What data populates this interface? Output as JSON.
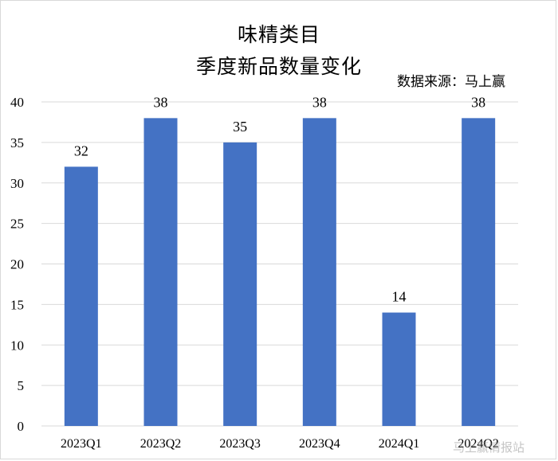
{
  "chart_data": {
    "type": "bar",
    "title": "味精类目",
    "subtitle": "季度新品数量变化",
    "source": "数据来源：马上赢",
    "categories": [
      "2023Q1",
      "2023Q2",
      "2023Q3",
      "2023Q4",
      "2024Q1",
      "2024Q2"
    ],
    "values": [
      32,
      38,
      35,
      38,
      14,
      38
    ],
    "ylim": [
      0,
      40
    ],
    "yticks": [
      0,
      5,
      10,
      15,
      20,
      25,
      30,
      35,
      40
    ],
    "grid": true,
    "bar_color": "#4472C4",
    "grid_color": "#d9d9d9"
  },
  "watermark": "马上赢情报站"
}
